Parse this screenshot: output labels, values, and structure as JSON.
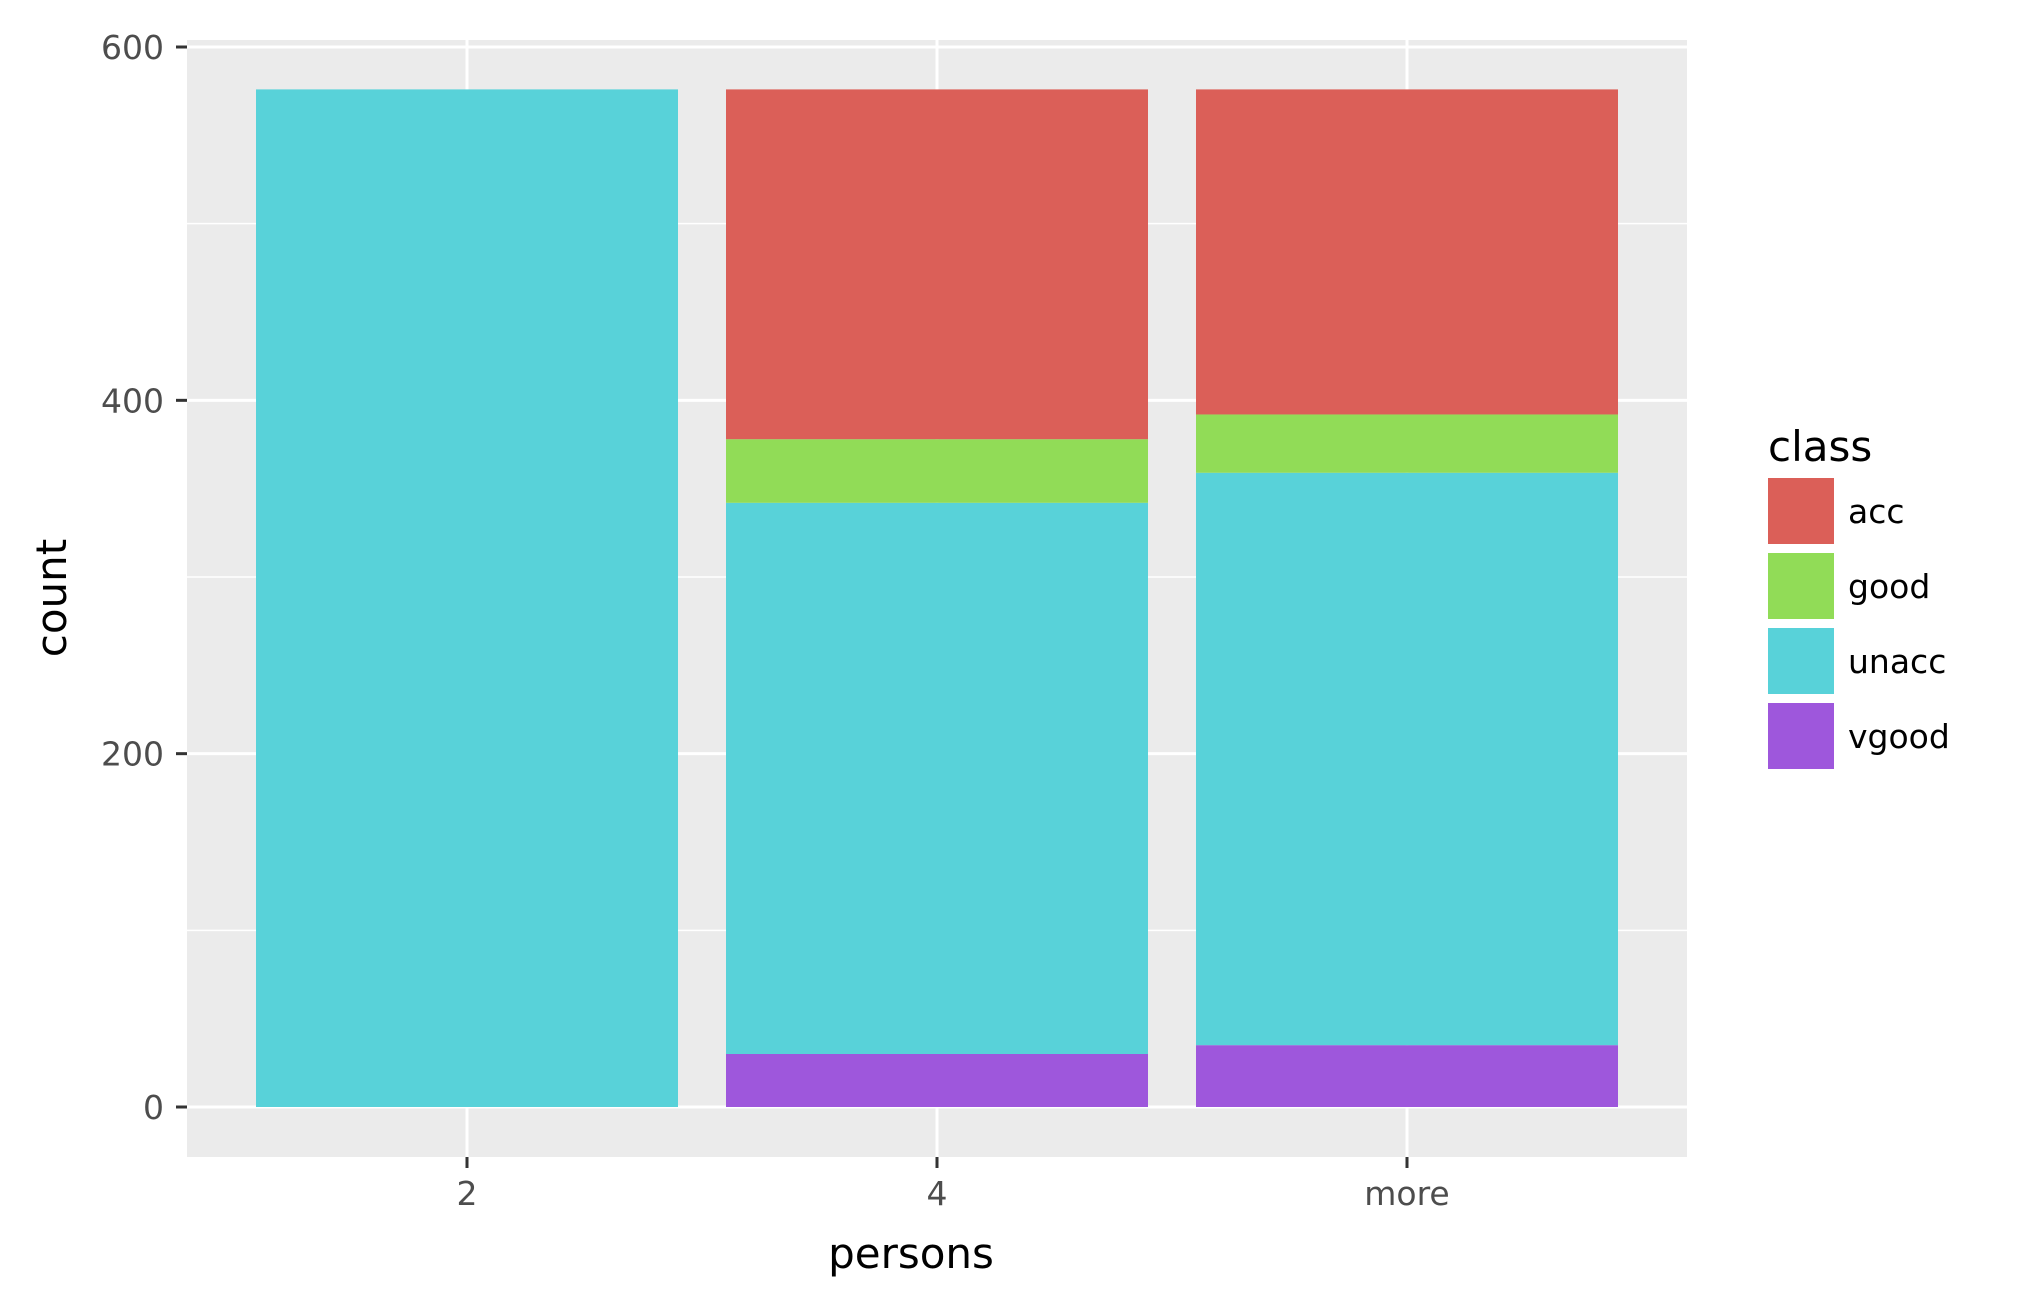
{
  "chart_data": {
    "type": "bar",
    "stacked": true,
    "title": "",
    "xlabel": "persons",
    "ylabel": "count",
    "categories": [
      "2",
      "4",
      "more"
    ],
    "ylim": [
      0,
      630
    ],
    "yticks": [
      0,
      200,
      400,
      600
    ],
    "grid": true,
    "legend_position": "right",
    "legend_title": "class",
    "series": [
      {
        "name": "vgood",
        "color": "#9e57dc",
        "values": [
          0,
          30,
          35
        ]
      },
      {
        "name": "unacc",
        "color": "#58d2d9",
        "values": [
          576,
          312,
          324
        ]
      },
      {
        "name": "good",
        "color": "#91dc57",
        "values": [
          0,
          36,
          33
        ]
      },
      {
        "name": "acc",
        "color": "#db5f58",
        "values": [
          0,
          198,
          184
        ]
      }
    ],
    "legend_order": [
      "acc",
      "good",
      "unacc",
      "vgood"
    ]
  }
}
